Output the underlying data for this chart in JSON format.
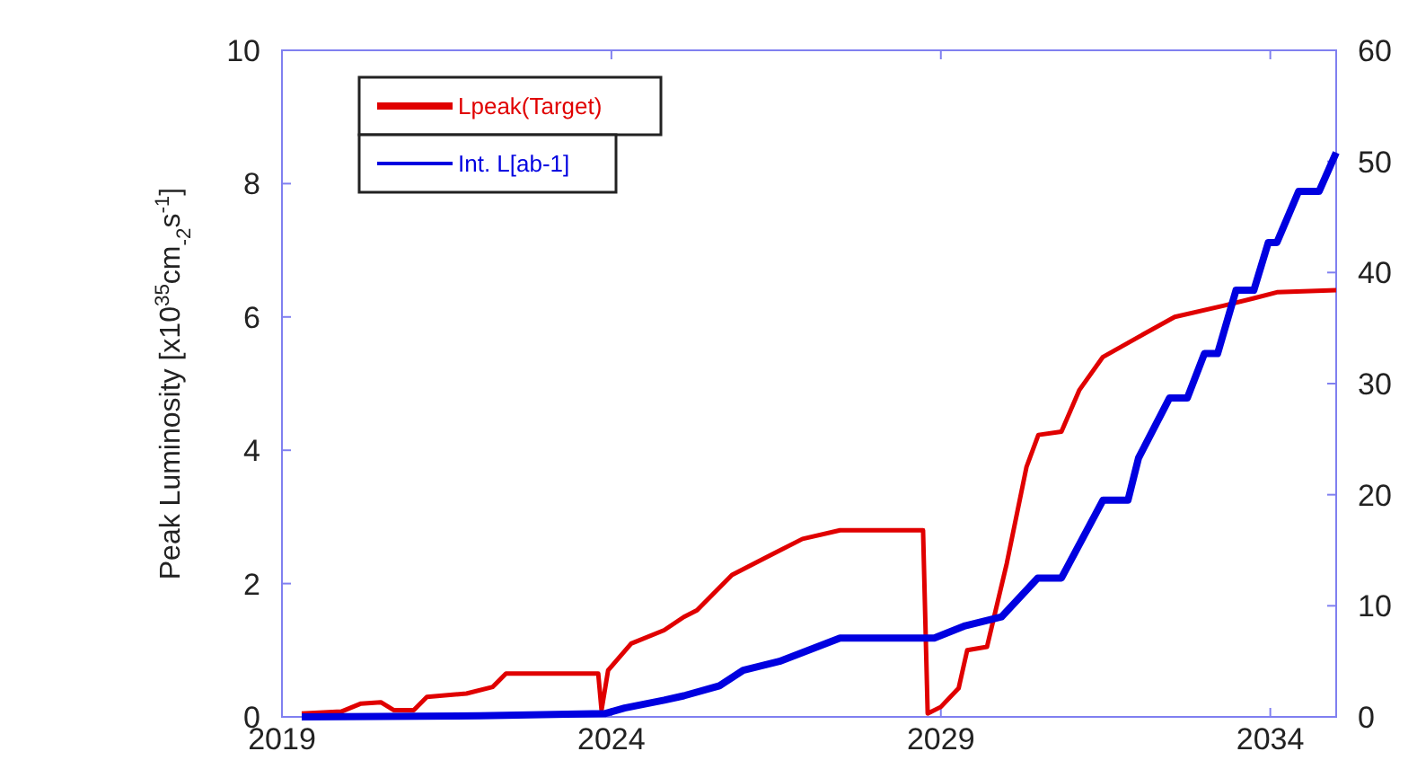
{
  "chart_data": {
    "type": "line",
    "ylabel": "Peak Luminosity [x10$^{35}$cm$_{-2}$s$^{-1}$]",
    "xlim": [
      2019,
      2035
    ],
    "xticks": [
      2019,
      2024,
      2029,
      2034
    ],
    "ylim": [
      0,
      10
    ],
    "yticks": [
      0,
      2,
      4,
      6,
      8,
      10
    ],
    "y2lim": [
      0,
      60
    ],
    "y2ticks": [
      0,
      10,
      20,
      30,
      40,
      50,
      60
    ],
    "grid": false,
    "legend": "top left",
    "line_style": "solid",
    "marker": "none",
    "series": [
      {
        "name": "Lpeak(Target)",
        "color": "#e00000",
        "x": [
          2019.3,
          2019.9,
          2020.2,
          2020.5,
          2020.7,
          2021.0,
          2021.2,
          2021.8,
          2022.2,
          2022.4,
          2023.8,
          2023.85,
          2023.95,
          2024.3,
          2024.8,
          2025.1,
          2025.3,
          2025.83,
          2026.46,
          2026.9,
          2027.47,
          2028.73,
          2028.8,
          2029.0,
          2029.27,
          2029.4,
          2029.7,
          2030.0,
          2030.3,
          2030.48,
          2030.83,
          2031.1,
          2031.46,
          2032.0,
          2032.55,
          2033.3,
          2033.75,
          2034.1,
          2035.0
        ],
        "values": [
          0.05,
          0.08,
          0.2,
          0.22,
          0.1,
          0.1,
          0.3,
          0.35,
          0.45,
          0.65,
          0.65,
          0.1,
          0.7,
          1.1,
          1.3,
          1.5,
          1.6,
          2.13,
          2.45,
          2.67,
          2.8,
          2.8,
          0.05,
          0.15,
          0.43,
          1.0,
          1.05,
          2.3,
          3.75,
          4.23,
          4.28,
          4.9,
          5.4,
          5.7,
          6.0,
          6.17,
          6.28,
          6.37,
          6.4
        ]
      },
      {
        "name": "Int. L[ab-1]",
        "color": "#0000e0",
        "axis": "y2",
        "x": [
          2019.3,
          2022.0,
          2023.9,
          2024.2,
          2024.8,
          2025.1,
          2025.64,
          2026.0,
          2026.55,
          2027.47,
          2028.9,
          2029.37,
          2029.92,
          2030.47,
          2030.83,
          2031.46,
          2031.84,
          2032.0,
          2032.47,
          2032.74,
          2033.0,
          2033.2,
          2033.48,
          2033.75,
          2033.97,
          2034.1,
          2034.43,
          2034.74,
          2035.0
        ],
        "values": [
          0,
          0.1,
          0.3,
          0.8,
          1.5,
          1.9,
          2.8,
          4.2,
          5,
          7.1,
          7.1,
          8.2,
          9,
          12.5,
          12.5,
          19.5,
          19.5,
          23.3,
          28.7,
          28.7,
          32.7,
          32.7,
          38.4,
          38.4,
          42.7,
          42.7,
          47.3,
          47.3,
          50.8
        ]
      }
    ]
  }
}
